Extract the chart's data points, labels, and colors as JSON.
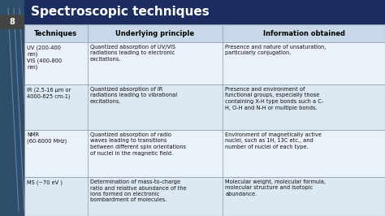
{
  "title": "Spectroscopic techniques",
  "title_bg": "#1b2d5e",
  "title_color": "#ffffff",
  "slide_bg": "#cfdce8",
  "table_bg_even": "#eaf1f8",
  "table_bg_odd": "#dce8f2",
  "header_bg": "#c8d8e8",
  "header_color": "#000000",
  "text_color": "#111111",
  "border_color": "#8899aa",
  "page_num": "8",
  "page_num_bg": "#444444",
  "columns": [
    "Techniques",
    "Underlying principle",
    "Information obtained"
  ],
  "left_blue": "#2e4d6b",
  "rows": [
    {
      "tech": "UV (200-400\nnm)\nVIS (400-800\nnm)",
      "principle": "Quantized absorption of UV/VIS\nradiations leading to electronic\nexcitations.",
      "info": "Presence and nature of unsaturation,\nparticularly conjugation."
    },
    {
      "tech": "IR (2.5-16 μm or\n4000-625 cm-1)",
      "principle": "Quantized absorption of IR\nradiations leading to vibrational\nexcitations.",
      "info": "Presence and environment of\nfunctional groups, especially those\ncontaining X-H type bonds such a C-\nH, O-H and N-H or multiple bonds."
    },
    {
      "tech": "NMR\n(60-6000 MHz)",
      "principle": "Quantized absorption of radio\nwaves leading to transitions\nbetween different spin orientations\nof nuclei in the magnetic field.",
      "info": "Environment of magnetically active\nnuclei, such as 1H, 13C etc., and\nnumber of nuclei of each type."
    },
    {
      "tech": "MS (~70 eV )",
      "principle": "Determination of mass-to-charge\nratio and relative abundance of the\nions formed on electronic\nbombardment of molecules.",
      "info": "Molecular weight, molecular formula,\nmolecular structure and isotopic\nabundance."
    }
  ]
}
